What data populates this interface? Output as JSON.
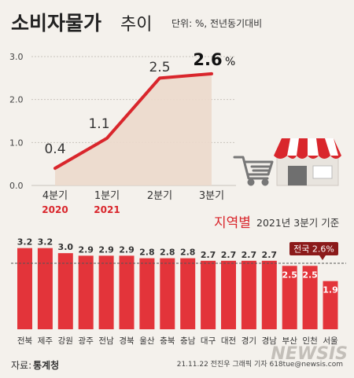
{
  "header": {
    "title_main": "소비자물가",
    "title_sub": "추이",
    "unit_note": "단위: %, 전년동기대비"
  },
  "colors": {
    "accent": "#d9262c",
    "bar": "#e3343a",
    "area": "#ecd9cc",
    "background": "#f4f1ec",
    "grid": "#c8c3bc",
    "text": "#333333"
  },
  "chart_data": [
    {
      "type": "line",
      "categories": [
        "4분기",
        "1분기",
        "2분기",
        "3분기"
      ],
      "category_years": [
        "2020",
        "2021",
        "",
        ""
      ],
      "values": [
        0.4,
        1.1,
        2.5,
        2.6
      ],
      "value_labels": [
        "0.4",
        "1.1",
        "2.5",
        "2.6"
      ],
      "value_suffix_last": "%",
      "yticks": [
        "0.0",
        "1.0",
        "2.0",
        "3.0"
      ],
      "ylim": [
        0,
        3.0
      ],
      "grid": true,
      "area_fill": true
    },
    {
      "type": "bar",
      "title": "지역별",
      "subtitle": "2021년 3분기 기준",
      "categories": [
        "전북",
        "제주",
        "강원",
        "광주",
        "전남",
        "경북",
        "울산",
        "충북",
        "충남",
        "대구",
        "대전",
        "경기",
        "경남",
        "부산",
        "인천",
        "서울"
      ],
      "values": [
        3.2,
        3.2,
        3.0,
        2.9,
        2.9,
        2.9,
        2.8,
        2.8,
        2.8,
        2.7,
        2.7,
        2.7,
        2.7,
        2.5,
        2.5,
        1.9
      ],
      "value_labels": [
        "3.2",
        "3.2",
        "3.0",
        "2.9",
        "2.9",
        "2.9",
        "2.8",
        "2.8",
        "2.8",
        "2.7",
        "2.7",
        "2.7",
        "2.7",
        "2.5",
        "2.5",
        "1.9"
      ],
      "reference_line": {
        "label": "전국 2.6%",
        "value": 2.6
      }
    }
  ],
  "footer": {
    "source_prefix": "자료:",
    "source_name": "통계청",
    "credit": "21.11.22 전진우 그래픽 기자 618tue@newsis.com",
    "logo_text": "NEWSIS"
  }
}
